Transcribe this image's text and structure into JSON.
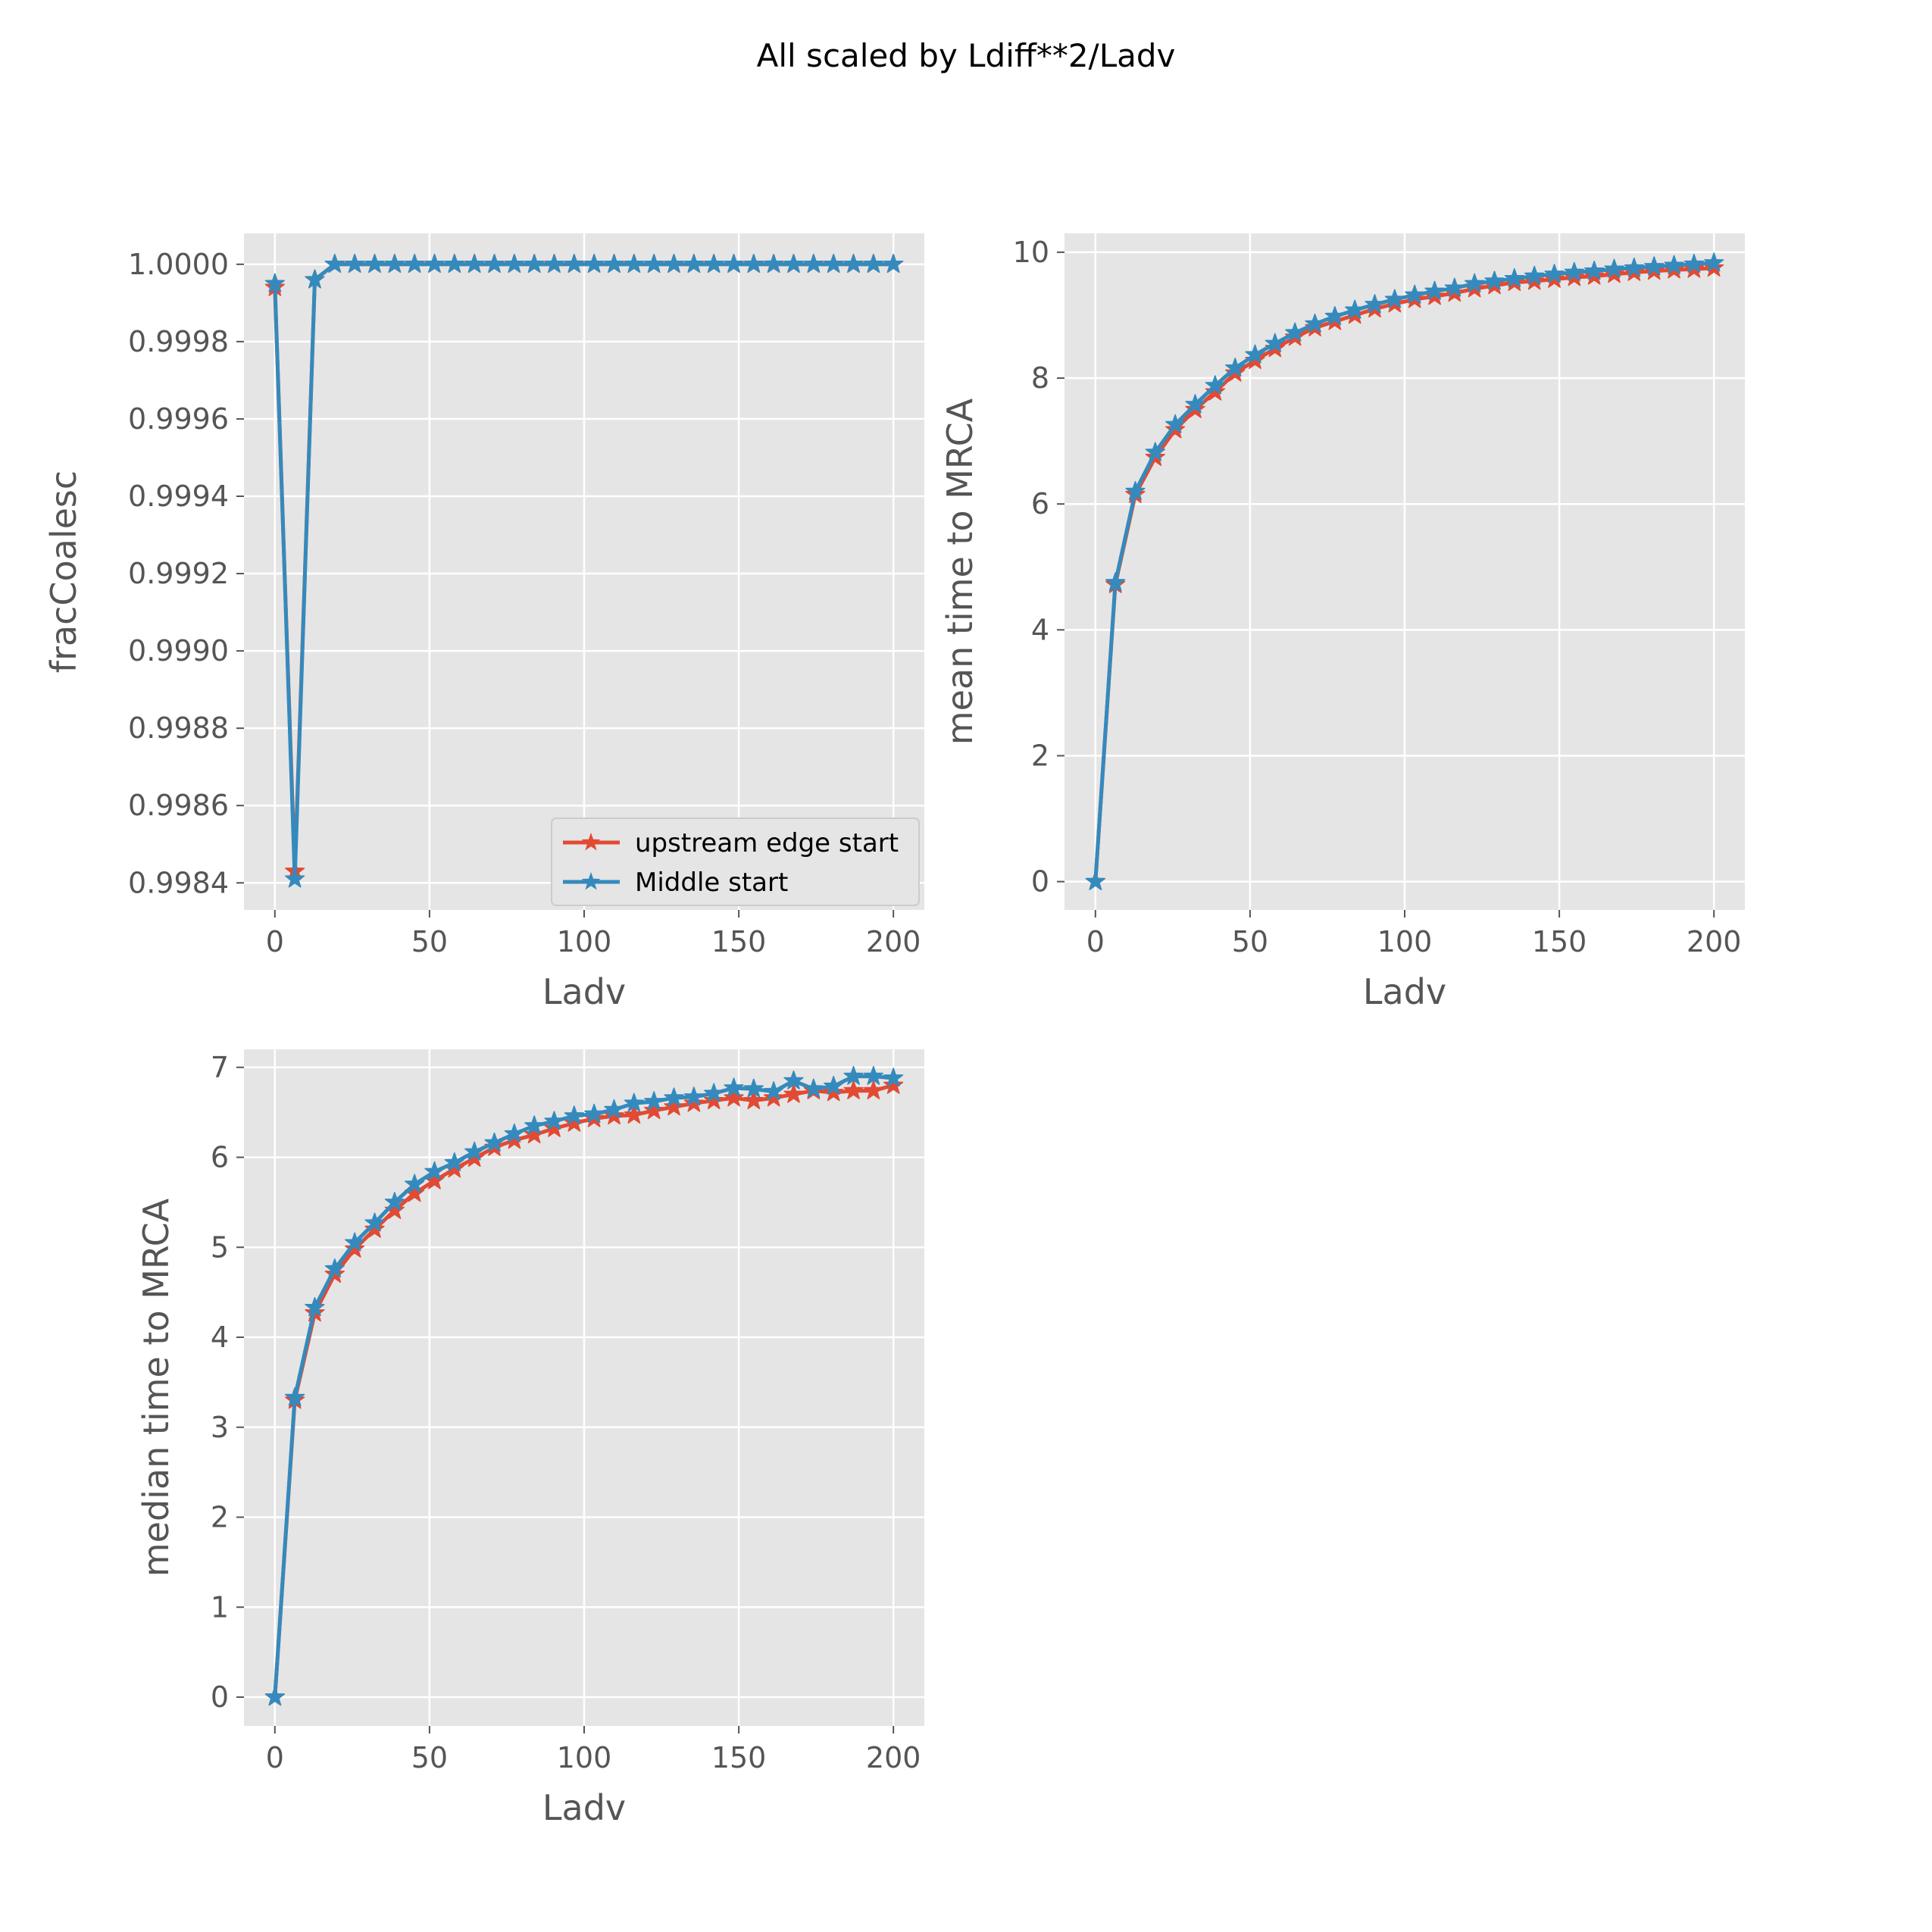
{
  "figure": {
    "title": "All scaled by Ldiff**2/Ladv"
  },
  "legend": {
    "entries": [
      "upstream edge start",
      "Middle start"
    ]
  },
  "colors": {
    "upstream": "#E24A33",
    "middle": "#348ABD",
    "panel_bg": "#E5E5E5",
    "grid": "#FFFFFF",
    "text": "#555555"
  },
  "chart_data": [
    {
      "type": "line",
      "title": "",
      "xlabel": "Ladv",
      "ylabel": "fracCoalesc",
      "xlim": [
        -10,
        210
      ],
      "ylim": [
        0.99833,
        1.00008
      ],
      "xticks": [
        0,
        50,
        100,
        150,
        200
      ],
      "xtick_labels": [
        "0",
        "50",
        "100",
        "150",
        "200"
      ],
      "yticks": [
        0.9984,
        0.9986,
        0.9988,
        0.999,
        0.9992,
        0.9994,
        0.9996,
        0.9998,
        1.0
      ],
      "ytick_labels": [
        "0.9984",
        "0.9986",
        "0.9988",
        "0.9990",
        "0.9992",
        "0.9994",
        "0.9996",
        "0.9998",
        "1.0000"
      ],
      "grid": true,
      "legend_position": "lower-right",
      "x": [
        0,
        6.45,
        12.9,
        19.35,
        25.8,
        32.26,
        38.71,
        45.16,
        51.61,
        58.06,
        64.52,
        70.97,
        77.42,
        83.87,
        90.32,
        96.77,
        103.23,
        109.68,
        116.13,
        122.58,
        129.03,
        135.48,
        141.94,
        148.39,
        154.84,
        161.29,
        167.74,
        174.19,
        180.65,
        187.1,
        193.55,
        200
      ],
      "series": [
        {
          "name": "upstream edge start",
          "values": [
            0.99994,
            0.99843,
            0.99996,
            1.0,
            1.0,
            1.0,
            1.0,
            1.0,
            1.0,
            1.0,
            1.0,
            1.0,
            1.0,
            1.0,
            1.0,
            1.0,
            1.0,
            1.0,
            1.0,
            1.0,
            1.0,
            1.0,
            1.0,
            1.0,
            1.0,
            1.0,
            1.0,
            1.0,
            1.0,
            1.0,
            1.0,
            1.0
          ]
        },
        {
          "name": "Middle start",
          "values": [
            0.99995,
            0.99841,
            0.99996,
            1.0,
            1.0,
            1.0,
            1.0,
            1.0,
            1.0,
            1.0,
            1.0,
            1.0,
            1.0,
            1.0,
            1.0,
            1.0,
            1.0,
            1.0,
            1.0,
            1.0,
            1.0,
            1.0,
            1.0,
            1.0,
            1.0,
            1.0,
            1.0,
            1.0,
            1.0,
            1.0,
            1.0,
            1.0
          ]
        }
      ]
    },
    {
      "type": "line",
      "title": "",
      "xlabel": "Ladv",
      "ylabel": "mean time to MRCA",
      "xlim": [
        -10,
        210
      ],
      "ylim": [
        -0.45,
        10.3
      ],
      "xticks": [
        0,
        50,
        100,
        150,
        200
      ],
      "xtick_labels": [
        "0",
        "50",
        "100",
        "150",
        "200"
      ],
      "yticks": [
        0,
        2,
        4,
        6,
        8,
        10
      ],
      "ytick_labels": [
        "0",
        "2",
        "4",
        "6",
        "8",
        "10"
      ],
      "grid": true,
      "x": [
        0,
        6.45,
        12.9,
        19.35,
        25.8,
        32.26,
        38.71,
        45.16,
        51.61,
        58.06,
        64.52,
        70.97,
        77.42,
        83.87,
        90.32,
        96.77,
        103.23,
        109.68,
        116.13,
        122.58,
        129.03,
        135.48,
        141.94,
        148.39,
        154.84,
        161.29,
        167.74,
        174.19,
        180.65,
        187.1,
        193.55,
        200
      ],
      "series": [
        {
          "name": "upstream edge start",
          "values": [
            0.0,
            4.72,
            6.15,
            6.74,
            7.18,
            7.5,
            7.78,
            8.08,
            8.28,
            8.47,
            8.65,
            8.8,
            8.9,
            9.0,
            9.1,
            9.18,
            9.25,
            9.3,
            9.35,
            9.42,
            9.47,
            9.52,
            9.54,
            9.57,
            9.6,
            9.62,
            9.65,
            9.68,
            9.7,
            9.72,
            9.73,
            9.75
          ]
        },
        {
          "name": "Middle start",
          "values": [
            0.0,
            4.75,
            6.2,
            6.82,
            7.26,
            7.58,
            7.88,
            8.16,
            8.37,
            8.55,
            8.72,
            8.86,
            8.98,
            9.08,
            9.17,
            9.25,
            9.32,
            9.38,
            9.43,
            9.5,
            9.54,
            9.58,
            9.62,
            9.65,
            9.68,
            9.7,
            9.73,
            9.75,
            9.77,
            9.79,
            9.81,
            9.83
          ]
        }
      ]
    },
    {
      "type": "line",
      "title": "",
      "xlabel": "Ladv",
      "ylabel": "median time to MRCA",
      "xlim": [
        -10,
        210
      ],
      "ylim": [
        -0.32,
        7.2
      ],
      "xticks": [
        0,
        50,
        100,
        150,
        200
      ],
      "xtick_labels": [
        "0",
        "50",
        "100",
        "150",
        "200"
      ],
      "yticks": [
        0,
        1,
        2,
        3,
        4,
        5,
        6,
        7
      ],
      "ytick_labels": [
        "0",
        "1",
        "2",
        "3",
        "4",
        "5",
        "6",
        "7"
      ],
      "grid": true,
      "x": [
        0,
        6.45,
        12.9,
        19.35,
        25.8,
        32.26,
        38.71,
        45.16,
        51.61,
        58.06,
        64.52,
        70.97,
        77.42,
        83.87,
        90.32,
        96.77,
        103.23,
        109.68,
        116.13,
        122.58,
        129.03,
        135.48,
        141.94,
        148.39,
        154.84,
        161.29,
        167.74,
        174.19,
        180.65,
        187.1,
        193.55,
        200
      ],
      "series": [
        {
          "name": "upstream edge start",
          "values": [
            0.0,
            3.3,
            4.27,
            4.7,
            4.98,
            5.2,
            5.41,
            5.6,
            5.74,
            5.87,
            5.99,
            6.11,
            6.19,
            6.25,
            6.32,
            6.38,
            6.43,
            6.46,
            6.47,
            6.52,
            6.56,
            6.6,
            6.63,
            6.66,
            6.63,
            6.66,
            6.7,
            6.74,
            6.72,
            6.74,
            6.74,
            6.8
          ]
        },
        {
          "name": "Middle start",
          "values": [
            0.0,
            3.33,
            4.33,
            4.76,
            5.05,
            5.27,
            5.5,
            5.7,
            5.84,
            5.94,
            6.06,
            6.16,
            6.26,
            6.35,
            6.4,
            6.46,
            6.48,
            6.53,
            6.6,
            6.62,
            6.66,
            6.67,
            6.71,
            6.77,
            6.76,
            6.73,
            6.85,
            6.76,
            6.79,
            6.9,
            6.9,
            6.88
          ]
        }
      ]
    }
  ]
}
